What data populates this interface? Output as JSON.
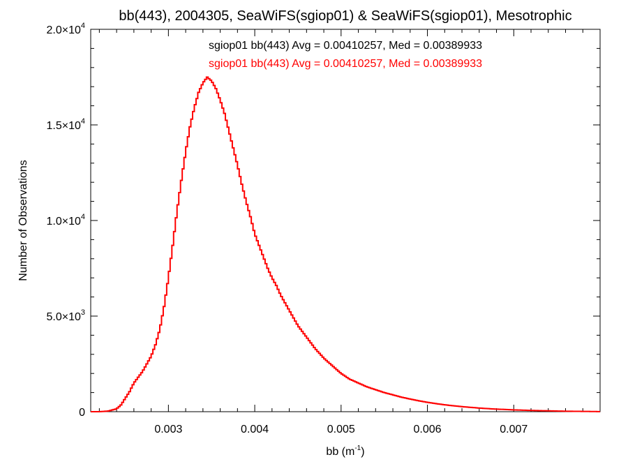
{
  "chart_data": {
    "type": "line",
    "title": "bb(443), 2004305, SeaWiFS(sgiop01) & SeaWiFS(sgiop01), Mesotrophic",
    "xlabel": "bb (m",
    "xlabel_sup": "-1",
    "xlabel_tail": ")",
    "ylabel": "Number of Observations",
    "xlim": [
      0.0021,
      0.008
    ],
    "ylim": [
      0,
      20000
    ],
    "x_ticks": [
      {
        "value": 0.003,
        "label": "0.003"
      },
      {
        "value": 0.004,
        "label": "0.004"
      },
      {
        "value": 0.005,
        "label": "0.005"
      },
      {
        "value": 0.006,
        "label": "0.006"
      },
      {
        "value": 0.007,
        "label": "0.007"
      }
    ],
    "y_ticks": [
      {
        "value": 0,
        "mant": "0",
        "exp": ""
      },
      {
        "value": 5000,
        "mant": "5.0×10",
        "exp": "3"
      },
      {
        "value": 10000,
        "mant": "1.0×10",
        "exp": "4"
      },
      {
        "value": 15000,
        "mant": "1.5×10",
        "exp": "4"
      },
      {
        "value": 20000,
        "mant": "2.0×10",
        "exp": "4"
      }
    ],
    "legend": {
      "placement": "top-center",
      "entries": [
        {
          "text": "sgiop01 bb(443) Avg = 0.00410257, Med = 0.00389933",
          "color": "#000000"
        },
        {
          "text": "sgiop01 bb(443) Avg = 0.00410257, Med = 0.00389933",
          "color": "#ff0000"
        }
      ]
    },
    "series_color": "#ff0000",
    "series": [
      {
        "x": [
          0.0021,
          0.0022,
          0.0023,
          0.0024,
          0.00245,
          0.0025,
          0.00255,
          0.0026,
          0.00265,
          0.0027,
          0.00275,
          0.0028,
          0.00285,
          0.0029,
          0.00295,
          0.003,
          0.00305,
          0.0031,
          0.00315,
          0.0032,
          0.00325,
          0.0033,
          0.00335,
          0.0034,
          0.00345,
          0.0035,
          0.00355,
          0.0036,
          0.00365,
          0.0037,
          0.00375,
          0.0038,
          0.00385,
          0.0039,
          0.00395,
          0.004,
          0.00405,
          0.0041,
          0.00415,
          0.0042,
          0.00425,
          0.0043,
          0.00435,
          0.0044,
          0.00445,
          0.0045,
          0.00455,
          0.0046,
          0.00465,
          0.0047,
          0.00475,
          0.0048,
          0.00485,
          0.0049,
          0.00495,
          0.005,
          0.00505,
          0.0051,
          0.0052,
          0.0053,
          0.0054,
          0.0055,
          0.0056,
          0.0057,
          0.0058,
          0.0059,
          0.006,
          0.0061,
          0.0062,
          0.0063,
          0.0064,
          0.0065,
          0.0066,
          0.0067,
          0.0068,
          0.0069,
          0.007,
          0.0071,
          0.0072,
          0.0073,
          0.0074,
          0.0075,
          0.0076,
          0.0077,
          0.0078,
          0.0079,
          0.008
        ],
        "y": [
          0,
          0,
          30,
          150,
          350,
          700,
          1050,
          1500,
          1800,
          2100,
          2500,
          2900,
          3500,
          4300,
          5500,
          7000,
          8700,
          10500,
          12100,
          13600,
          14900,
          15900,
          16700,
          17200,
          17500,
          17300,
          16900,
          16300,
          15600,
          14700,
          13800,
          12900,
          11900,
          11000,
          10200,
          9300,
          8700,
          8100,
          7500,
          7000,
          6600,
          6100,
          5700,
          5300,
          4900,
          4500,
          4200,
          3900,
          3600,
          3300,
          3050,
          2800,
          2600,
          2400,
          2200,
          2000,
          1850,
          1700,
          1500,
          1300,
          1150,
          1000,
          880,
          760,
          660,
          570,
          490,
          420,
          360,
          310,
          265,
          225,
          190,
          160,
          135,
          115,
          95,
          80,
          65,
          55,
          45,
          35,
          25,
          20,
          15,
          10,
          5
        ]
      }
    ]
  }
}
